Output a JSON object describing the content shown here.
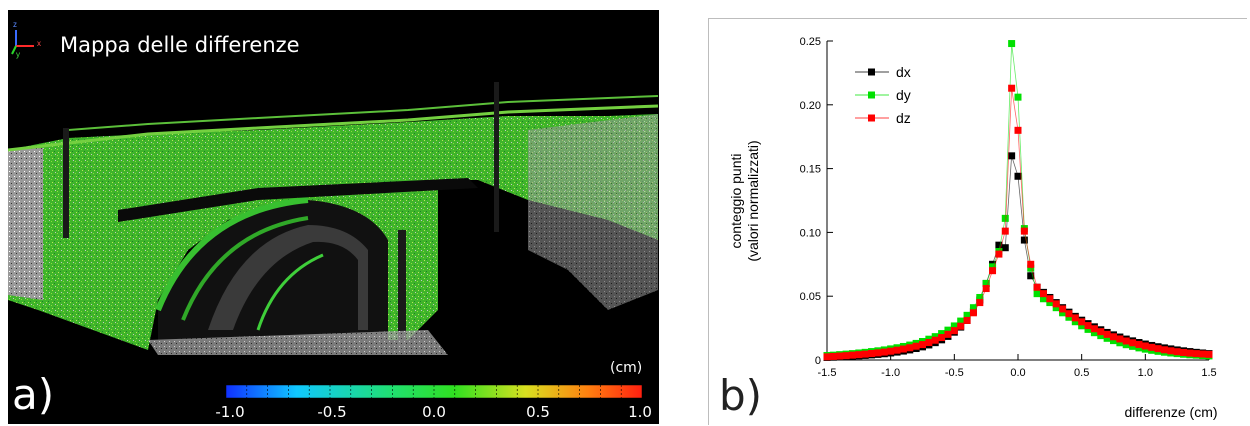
{
  "panel_a": {
    "letter": "a)",
    "title": "Mappa delle differenze",
    "axes_labels": {
      "z": "z",
      "x": "x",
      "y": "y"
    },
    "colorbar": {
      "unit": "(cm)",
      "ticks": [
        "-1.0",
        "-0.5",
        "0.0",
        "0.5",
        "1.0"
      ],
      "colors": [
        "#1030ff",
        "#10c8ff",
        "#20e070",
        "#30e020",
        "#d8e020",
        "#ff8010",
        "#ff2010"
      ]
    }
  },
  "panel_b": {
    "letter": "b)"
  },
  "chart_data": {
    "type": "line",
    "xlabel": "differenze (cm)",
    "ylabel": [
      "conteggio punti",
      "(valori normalizzati)"
    ],
    "xlim": [
      -1.5,
      1.5
    ],
    "ylim": [
      0,
      0.25
    ],
    "xticks": [
      "-1.5",
      "-1.0",
      "-0.5",
      "0.0",
      "0.5",
      "1.0",
      "1.5"
    ],
    "yticks": [
      "0",
      "0.05",
      "0.10",
      "0.15",
      "0.20",
      "0.25"
    ],
    "legend_position": "top-left",
    "x": [
      -1.5,
      -1.45,
      -1.4,
      -1.35,
      -1.3,
      -1.25,
      -1.2,
      -1.15,
      -1.1,
      -1.05,
      -1.0,
      -0.95,
      -0.9,
      -0.85,
      -0.8,
      -0.75,
      -0.7,
      -0.65,
      -0.6,
      -0.55,
      -0.5,
      -0.45,
      -0.4,
      -0.35,
      -0.3,
      -0.25,
      -0.2,
      -0.15,
      -0.1,
      -0.05,
      0.0,
      0.05,
      0.1,
      0.15,
      0.2,
      0.25,
      0.3,
      0.35,
      0.4,
      0.45,
      0.5,
      0.55,
      0.6,
      0.65,
      0.7,
      0.75,
      0.8,
      0.85,
      0.9,
      0.95,
      1.0,
      1.05,
      1.1,
      1.15,
      1.2,
      1.25,
      1.3,
      1.35,
      1.4,
      1.45,
      1.5
    ],
    "series": [
      {
        "name": "dx",
        "color": "#000000",
        "values": [
          0.002,
          0.0022,
          0.0025,
          0.0027,
          0.003,
          0.0033,
          0.0036,
          0.004,
          0.0044,
          0.0049,
          0.0055,
          0.0062,
          0.007,
          0.0079,
          0.009,
          0.0103,
          0.0118,
          0.0136,
          0.0158,
          0.0185,
          0.0218,
          0.0258,
          0.031,
          0.038,
          0.047,
          0.06,
          0.075,
          0.09,
          0.088,
          0.16,
          0.144,
          0.094,
          0.066,
          0.057,
          0.053,
          0.049,
          0.045,
          0.041,
          0.0375,
          0.0342,
          0.0312,
          0.0285,
          0.026,
          0.0237,
          0.0216,
          0.0197,
          0.018,
          0.0164,
          0.015,
          0.0137,
          0.0125,
          0.0114,
          0.0104,
          0.0095,
          0.0087,
          0.0079,
          0.0072,
          0.0066,
          0.006,
          0.0055,
          0.005
        ]
      },
      {
        "name": "dy",
        "color": "#00e000",
        "values": [
          0.0035,
          0.0038,
          0.0042,
          0.0046,
          0.005,
          0.0055,
          0.006,
          0.0066,
          0.0072,
          0.0079,
          0.0087,
          0.0096,
          0.0106,
          0.0117,
          0.013,
          0.0145,
          0.0163,
          0.0183,
          0.0207,
          0.0234,
          0.0267,
          0.0305,
          0.035,
          0.041,
          0.049,
          0.06,
          0.073,
          0.085,
          0.111,
          0.248,
          0.206,
          0.103,
          0.072,
          0.052,
          0.048,
          0.045,
          0.041,
          0.037,
          0.0335,
          0.03,
          0.0268,
          0.024,
          0.0214,
          0.0191,
          0.017,
          0.0152,
          0.0135,
          0.012,
          0.0107,
          0.0095,
          0.0085,
          0.0076,
          0.0068,
          0.0061,
          0.0055,
          0.005,
          0.0045,
          0.0041,
          0.0038,
          0.0035,
          0.0032
        ]
      },
      {
        "name": "dz",
        "color": "#ff0000",
        "values": [
          0.0025,
          0.0028,
          0.0031,
          0.0034,
          0.0038,
          0.0042,
          0.0046,
          0.0051,
          0.0056,
          0.0062,
          0.0069,
          0.0077,
          0.0086,
          0.0096,
          0.0108,
          0.0121,
          0.0137,
          0.0155,
          0.0176,
          0.0201,
          0.023,
          0.0265,
          0.031,
          0.037,
          0.045,
          0.056,
          0.07,
          0.083,
          0.101,
          0.213,
          0.18,
          0.101,
          0.075,
          0.057,
          0.052,
          0.048,
          0.044,
          0.04,
          0.0363,
          0.033,
          0.0299,
          0.027,
          0.0245,
          0.0222,
          0.0201,
          0.0182,
          0.0165,
          0.0149,
          0.0135,
          0.0122,
          0.011,
          0.0099,
          0.0089,
          0.008,
          0.0072,
          0.0065,
          0.0059,
          0.0054,
          0.005,
          0.0047,
          0.0044
        ]
      }
    ]
  }
}
